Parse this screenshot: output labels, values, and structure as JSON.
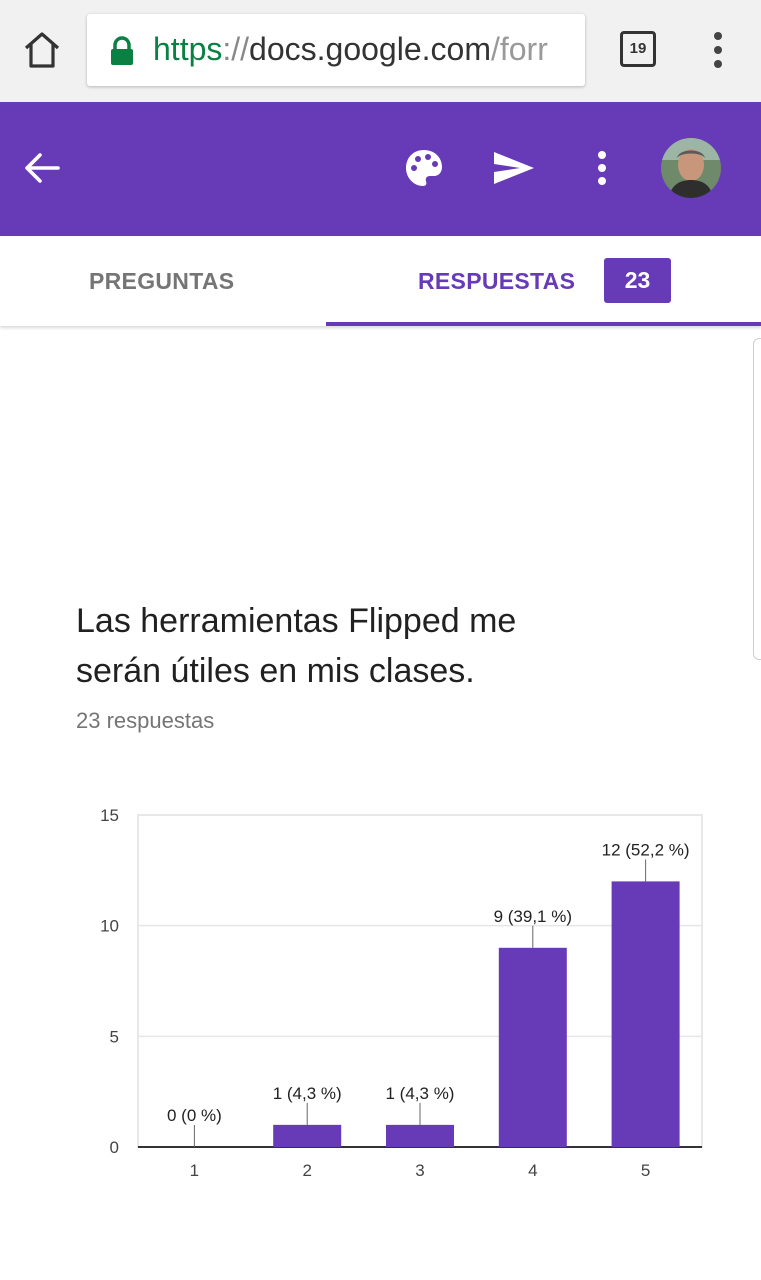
{
  "browser": {
    "url_scheme": "https",
    "url_sep": "://",
    "url_host": "docs.google.com",
    "url_path": "/forr",
    "tab_count": "19",
    "icons": [
      "home-icon",
      "lock-icon",
      "tabs-icon",
      "more-vert-icon"
    ],
    "lock_color": "#0b8043"
  },
  "app_bar": {
    "color": "#673ab7",
    "icons": [
      "back-arrow-icon",
      "palette-icon",
      "send-icon",
      "more-vert-icon",
      "avatar"
    ]
  },
  "tabs": {
    "preguntas": "PREGUNTAS",
    "respuestas": "RESPUESTAS",
    "response_count": "23"
  },
  "question": {
    "title": "Las herramientas Flipped me serán útiles en mis clases.",
    "responses": "23 respuestas"
  },
  "chart_data": {
    "type": "bar",
    "categories": [
      "1",
      "2",
      "3",
      "4",
      "5"
    ],
    "values": [
      0,
      1,
      1,
      9,
      12
    ],
    "data_labels": [
      "0 (0 %)",
      "1 (4,3 %)",
      "1 (4,3 %)",
      "9 (39,1 %)",
      "12 (52,2 %)"
    ],
    "y_ticks": [
      "0",
      "5",
      "10",
      "15"
    ],
    "ylim": [
      0,
      15
    ],
    "grid": true,
    "bar_color": "#673ab7"
  }
}
